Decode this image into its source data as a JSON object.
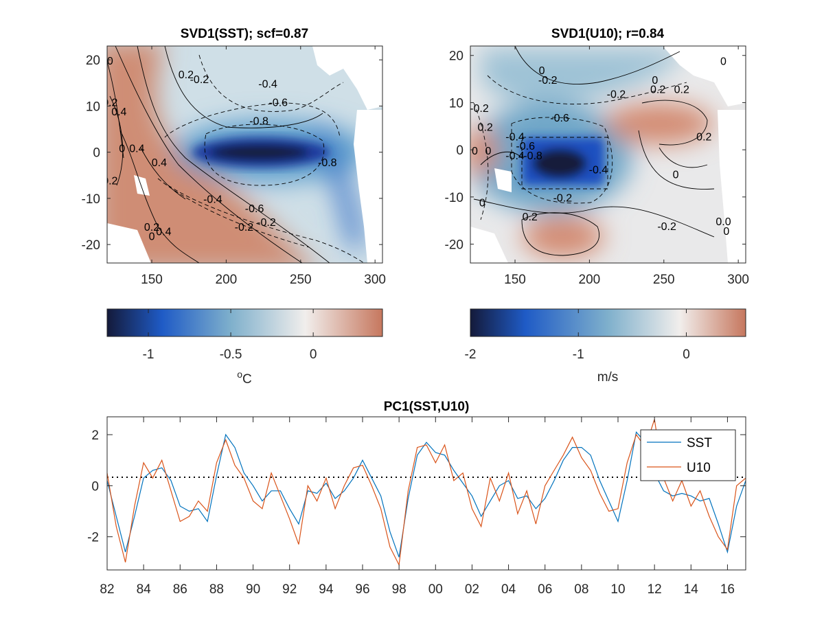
{
  "colors": {
    "deep_blue": "#141a3a",
    "mid_blue": "#1f5bc6",
    "light_blue": "#7fb0cc",
    "near_white": "#f1eeec",
    "red": "#c6775e",
    "sst_line": "#0072bd",
    "u10_line": "#d95319"
  },
  "chart_data": [
    {
      "type": "heatmap",
      "title": "SVD1(SST); scf=0.87",
      "xlim": [
        120,
        305
      ],
      "ylim": [
        -24,
        23
      ],
      "xticks": [
        150,
        200,
        250,
        300
      ],
      "yticks": [
        20,
        10,
        0,
        -10,
        -20
      ],
      "colorbar": {
        "clim": [
          -1.25,
          0.42
        ],
        "ticks": [
          -1,
          -0.5,
          0
        ],
        "tick_labels": [
          "-1",
          "-0.5",
          "0"
        ],
        "unit_base": "o",
        "unit_tail": "C"
      },
      "contour_labels": [
        {
          "text": "0",
          "x": 122,
          "y": 19
        },
        {
          "text": "0.2",
          "x": 122,
          "y": 10
        },
        {
          "text": "0.4",
          "x": 128,
          "y": 8
        },
        {
          "text": "0.2",
          "x": 173,
          "y": 16
        },
        {
          "text": "-0.2",
          "x": 182,
          "y": 15
        },
        {
          "text": "-0.4",
          "x": 228,
          "y": 14
        },
        {
          "text": "-0.6",
          "x": 235,
          "y": 10
        },
        {
          "text": "-0.8",
          "x": 222,
          "y": 6
        },
        {
          "text": "0.4",
          "x": 140,
          "y": 0
        },
        {
          "text": "0",
          "x": 130,
          "y": 0
        },
        {
          "text": "0.4",
          "x": 155,
          "y": -3
        },
        {
          "text": "-0.8",
          "x": 268,
          "y": -3
        },
        {
          "text": "0.2",
          "x": 122,
          "y": -7
        },
        {
          "text": "-0.4",
          "x": 191,
          "y": -11
        },
        {
          "text": "-0.6",
          "x": 219,
          "y": -13
        },
        {
          "text": "-0.2",
          "x": 227,
          "y": -16
        },
        {
          "text": "-0.2",
          "x": 212,
          "y": -17
        },
        {
          "text": "0.4",
          "x": 158,
          "y": -18
        },
        {
          "text": "0.2",
          "x": 150,
          "y": -17
        },
        {
          "text": "0",
          "x": 150,
          "y": -19
        }
      ]
    },
    {
      "type": "heatmap",
      "title": "SVD1(U10); r=0.84",
      "xlim": [
        120,
        305
      ],
      "ylim": [
        -24,
        22
      ],
      "xticks": [
        150,
        200,
        250,
        300
      ],
      "yticks": [
        20,
        10,
        0,
        -10,
        -20
      ],
      "colorbar": {
        "clim": [
          -2,
          0.55
        ],
        "ticks": [
          -2,
          -1,
          0
        ],
        "tick_labels": [
          "-2",
          "-1",
          "0"
        ],
        "unit": "m/s"
      },
      "contour_labels": [
        {
          "text": "0",
          "x": 168,
          "y": 16
        },
        {
          "text": "-0.2",
          "x": 172,
          "y": 14
        },
        {
          "text": "-0.2",
          "x": 218,
          "y": 11
        },
        {
          "text": "0",
          "x": 244,
          "y": 14
        },
        {
          "text": "0.2",
          "x": 246,
          "y": 12
        },
        {
          "text": "0.2",
          "x": 262,
          "y": 12
        },
        {
          "text": "0",
          "x": 290,
          "y": 18
        },
        {
          "text": "-0.2",
          "x": 126,
          "y": 8
        },
        {
          "text": "0.2",
          "x": 130,
          "y": 4
        },
        {
          "text": "-0.6",
          "x": 180,
          "y": 6
        },
        {
          "text": "-0.4",
          "x": 150,
          "y": 2
        },
        {
          "text": "-0.6",
          "x": 157,
          "y": 0
        },
        {
          "text": "-0.8",
          "x": 162,
          "y": -2
        },
        {
          "text": "-0.4",
          "x": 150,
          "y": -2
        },
        {
          "text": "0.2",
          "x": 277,
          "y": 2
        },
        {
          "text": "-0.4",
          "x": 206,
          "y": -5
        },
        {
          "text": "0",
          "x": 132,
          "y": -1
        },
        {
          "text": "0",
          "x": 123,
          "y": -1
        },
        {
          "text": "0",
          "x": 258,
          "y": -6
        },
        {
          "text": "0",
          "x": 128,
          "y": -12
        },
        {
          "text": "-0.2",
          "x": 182,
          "y": -11
        },
        {
          "text": "0.2",
          "x": 160,
          "y": -15
        },
        {
          "text": "-0.2",
          "x": 252,
          "y": -17
        },
        {
          "text": "0.0",
          "x": 290,
          "y": -16
        },
        {
          "text": "0",
          "x": 292,
          "y": -18
        }
      ]
    },
    {
      "type": "line",
      "title": "PC1(SST,U10)",
      "xlim": [
        1982,
        2017
      ],
      "ylim": [
        -3.3,
        2.7
      ],
      "xticks": [
        1982,
        1984,
        1986,
        1988,
        1990,
        1992,
        1994,
        1996,
        1998,
        2000,
        2002,
        2004,
        2006,
        2008,
        2010,
        2012,
        2014,
        2016
      ],
      "xtick_labels": [
        "82",
        "84",
        "86",
        "88",
        "90",
        "92",
        "94",
        "96",
        "98",
        "00",
        "02",
        "04",
        "06",
        "08",
        "10",
        "12",
        "14",
        "16"
      ],
      "yticks": [
        2,
        0,
        -2
      ],
      "ytick_labels": [
        "2",
        "0",
        "-2"
      ],
      "zero_line": "dotted",
      "legend": "top-right",
      "series": [
        {
          "name": "SST",
          "x": [
            1982.0,
            1982.5,
            1983.0,
            1983.5,
            1984.0,
            1984.5,
            1985.0,
            1985.5,
            1986.0,
            1986.5,
            1987.0,
            1987.5,
            1988.0,
            1988.5,
            1989.0,
            1989.5,
            1990.0,
            1990.5,
            1991.0,
            1991.5,
            1992.0,
            1992.5,
            1993.0,
            1993.5,
            1994.0,
            1994.5,
            1995.0,
            1995.5,
            1996.0,
            1996.5,
            1997.0,
            1997.5,
            1998.0,
            1998.5,
            1999.0,
            1999.5,
            2000.0,
            2000.5,
            2001.0,
            2001.5,
            2002.0,
            2002.5,
            2003.0,
            2003.5,
            2004.0,
            2004.5,
            2005.0,
            2005.5,
            2006.0,
            2006.5,
            2007.0,
            2007.5,
            2008.0,
            2008.5,
            2009.0,
            2009.5,
            2010.0,
            2010.5,
            2011.0,
            2011.5,
            2012.0,
            2012.5,
            2013.0,
            2013.5,
            2014.0,
            2014.5,
            2015.0,
            2015.5,
            2016.0,
            2016.5,
            2017.0
          ],
          "y": [
            0.2,
            -1.2,
            -2.6,
            -1.2,
            0.3,
            0.6,
            0.7,
            0.2,
            -0.8,
            -1.0,
            -0.9,
            -1.4,
            0.4,
            2.0,
            1.5,
            0.5,
            0.0,
            -0.6,
            -0.2,
            -0.2,
            -0.9,
            -1.5,
            -0.2,
            -0.3,
            0.1,
            -0.5,
            -0.2,
            0.3,
            1.0,
            0.3,
            -0.4,
            -1.8,
            -2.8,
            -0.5,
            1.2,
            1.7,
            1.3,
            1.2,
            0.6,
            0.1,
            -0.4,
            -1.2,
            -0.6,
            0.0,
            0.2,
            -0.5,
            -0.4,
            -0.9,
            -0.5,
            0.2,
            1.0,
            1.5,
            1.5,
            1.2,
            0.2,
            -0.6,
            -1.4,
            0.2,
            2.1,
            1.7,
            0.5,
            -0.2,
            -0.4,
            -0.3,
            -0.4,
            -0.6,
            -0.5,
            -1.5,
            -2.6,
            -0.8,
            0.2
          ]
        },
        {
          "name": "U10",
          "x": [
            1982.0,
            1982.5,
            1983.0,
            1983.5,
            1984.0,
            1984.5,
            1985.0,
            1985.5,
            1986.0,
            1986.5,
            1987.0,
            1987.5,
            1988.0,
            1988.5,
            1989.0,
            1989.5,
            1990.0,
            1990.5,
            1991.0,
            1991.5,
            1992.0,
            1992.5,
            1993.0,
            1993.5,
            1994.0,
            1994.5,
            1995.0,
            1995.5,
            1996.0,
            1996.5,
            1997.0,
            1997.5,
            1998.0,
            1998.5,
            1999.0,
            1999.5,
            2000.0,
            2000.5,
            2001.0,
            2001.5,
            2002.0,
            2002.5,
            2003.0,
            2003.5,
            2004.0,
            2004.5,
            2005.0,
            2005.5,
            2006.0,
            2006.5,
            2007.0,
            2007.5,
            2008.0,
            2008.5,
            2009.0,
            2009.5,
            2010.0,
            2010.5,
            2011.0,
            2011.5,
            2012.0,
            2012.5,
            2013.0,
            2013.5,
            2014.0,
            2014.5,
            2015.0,
            2015.5,
            2016.0,
            2016.5,
            2017.0
          ],
          "y": [
            0.5,
            -1.6,
            -3.0,
            -0.8,
            0.9,
            0.3,
            1.0,
            -0.2,
            -1.4,
            -1.2,
            -0.6,
            -1.0,
            0.9,
            1.8,
            0.8,
            0.3,
            -0.6,
            -0.9,
            0.5,
            -0.4,
            -1.3,
            -2.3,
            0.0,
            -0.6,
            0.3,
            -0.9,
            0.0,
            0.7,
            0.8,
            0.0,
            -0.9,
            -2.4,
            -3.1,
            -0.2,
            1.5,
            1.6,
            0.9,
            1.6,
            0.2,
            0.5,
            -0.9,
            -1.6,
            0.3,
            -0.6,
            0.5,
            -1.1,
            -0.2,
            -1.5,
            0.0,
            0.6,
            1.2,
            1.9,
            1.1,
            0.6,
            -0.3,
            -1.0,
            -0.9,
            0.9,
            2.0,
            1.5,
            2.6,
            0.3,
            -0.6,
            0.2,
            -0.8,
            -0.2,
            -1.2,
            -2.0,
            -2.5,
            0.0,
            0.3
          ]
        }
      ]
    }
  ]
}
